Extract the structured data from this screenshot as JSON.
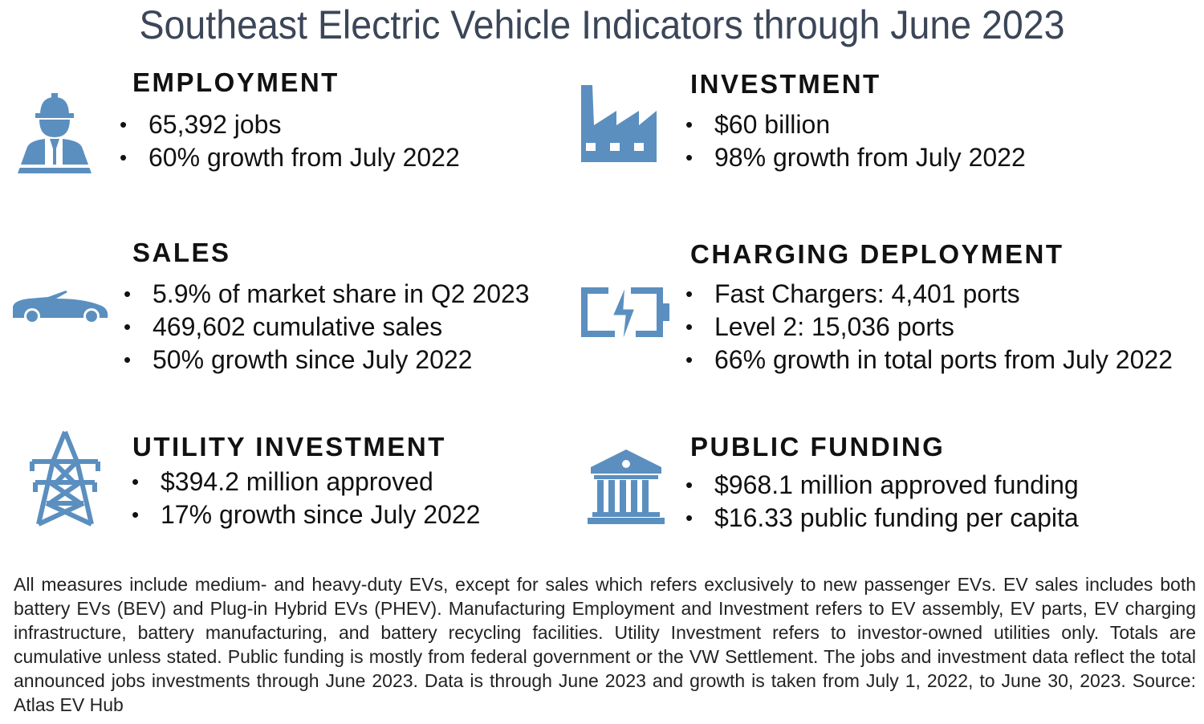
{
  "title": "Southeast Electric Vehicle Indicators through June 2023",
  "icon_color": "#5b8fbf",
  "sections": {
    "employment": {
      "heading": "EMPLOYMENT",
      "icon": "worker-icon",
      "bullets": [
        "65,392 jobs",
        "60% growth from July 2022"
      ]
    },
    "investment": {
      "heading": "INVESTMENT",
      "icon": "factory-icon",
      "bullets": [
        "$60 billion",
        "98% growth from July 2022"
      ]
    },
    "sales": {
      "heading": "SALES",
      "icon": "car-icon",
      "bullets": [
        "5.9% of market share in Q2 2023",
        "469,602 cumulative sales",
        "50% growth since July 2022"
      ]
    },
    "charging": {
      "heading": "CHARGING DEPLOYMENT",
      "icon": "battery-charging-icon",
      "bullets": [
        "Fast Chargers: 4,401 ports",
        "Level 2: 15,036 ports",
        "66% growth in total ports from July 2022"
      ]
    },
    "utility": {
      "heading": "UTILITY INVESTMENT",
      "icon": "power-tower-icon",
      "bullets": [
        "$394.2 million approved",
        "17% growth since July 2022"
      ]
    },
    "public_funding": {
      "heading": "PUBLIC FUNDING",
      "icon": "government-building-icon",
      "bullets": [
        "$968.1 million approved funding",
        "$16.33 public funding per capita"
      ]
    }
  },
  "bullet_char": "•",
  "footer": "All measures include medium- and heavy-duty EVs, except for sales which refers exclusively to new passenger EVs. EV sales includes both battery EVs (BEV) and Plug-in Hybrid EVs (PHEV). Manufacturing Employment and Investment refers to EV assembly, EV parts, EV charging infrastructure, battery manufacturing, and battery recycling facilities. Utility Investment refers to investor-owned utilities only. Totals are cumulative unless stated. Public funding is mostly from federal government or the VW Settlement. The jobs and investment data reflect the total announced jobs investments through June 2023. Data is through June 2023 and growth is taken from July 1, 2022, to June 30, 2023. Source: Atlas EV Hub"
}
